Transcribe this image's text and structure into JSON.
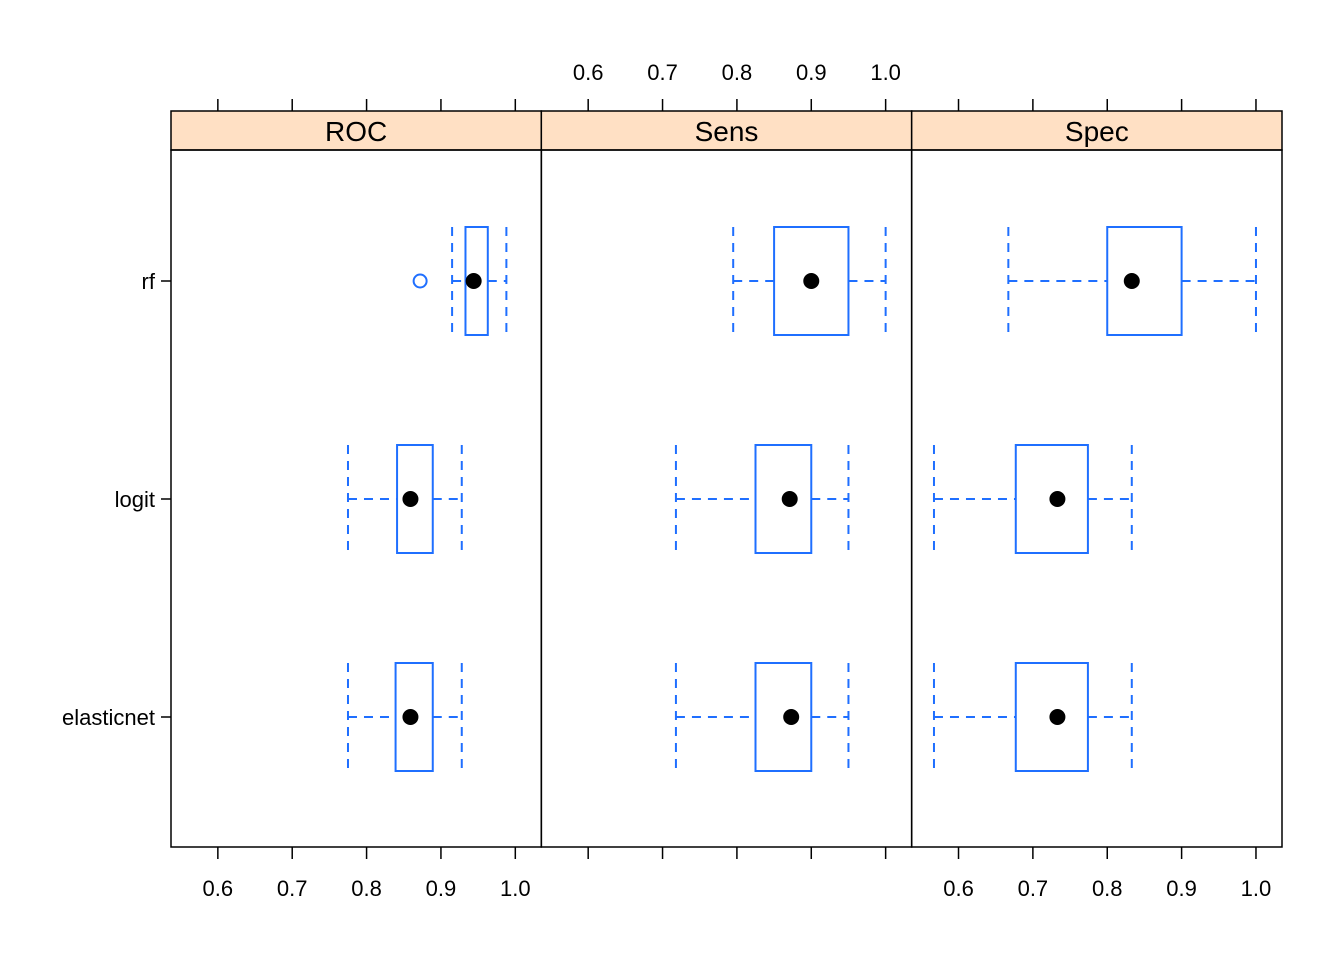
{
  "chart_data": {
    "type": "boxplot",
    "panels": [
      "ROC",
      "Sens",
      "Spec"
    ],
    "categories": [
      "rf",
      "logit",
      "elasticnet"
    ],
    "xlim": [
      0.537,
      1.035
    ],
    "ticks": [
      0.6,
      0.7,
      0.8,
      0.9,
      1.0
    ],
    "tick_labels": [
      "0.6",
      "0.7",
      "0.8",
      "0.9",
      "1.0"
    ],
    "grid": false,
    "colors": {
      "box": "#1f6fff",
      "median_dot": "#000000",
      "strip": "#ffe0c4",
      "outlier": "#1f6fff"
    },
    "series": [
      {
        "name": "ROC",
        "boxes": [
          {
            "category": "rf",
            "whisker_low": 0.915,
            "q1": 0.933,
            "median": 0.944,
            "q3": 0.963,
            "whisker_high": 0.988,
            "outliers": [
              0.872
            ]
          },
          {
            "category": "logit",
            "whisker_low": 0.775,
            "q1": 0.841,
            "median": 0.859,
            "q3": 0.889,
            "whisker_high": 0.928,
            "outliers": []
          },
          {
            "category": "elasticnet",
            "whisker_low": 0.775,
            "q1": 0.839,
            "median": 0.859,
            "q3": 0.889,
            "whisker_high": 0.928,
            "outliers": []
          }
        ]
      },
      {
        "name": "Sens",
        "boxes": [
          {
            "category": "rf",
            "whisker_low": 0.795,
            "q1": 0.85,
            "median": 0.9,
            "q3": 0.95,
            "whisker_high": 1.0,
            "outliers": []
          },
          {
            "category": "logit",
            "whisker_low": 0.718,
            "q1": 0.825,
            "median": 0.871,
            "q3": 0.9,
            "whisker_high": 0.95,
            "outliers": []
          },
          {
            "category": "elasticnet",
            "whisker_low": 0.718,
            "q1": 0.825,
            "median": 0.873,
            "q3": 0.9,
            "whisker_high": 0.95,
            "outliers": []
          }
        ]
      },
      {
        "name": "Spec",
        "boxes": [
          {
            "category": "rf",
            "whisker_low": 0.667,
            "q1": 0.8,
            "median": 0.833,
            "q3": 0.9,
            "whisker_high": 1.0,
            "outliers": []
          },
          {
            "category": "logit",
            "whisker_low": 0.567,
            "q1": 0.677,
            "median": 0.733,
            "q3": 0.774,
            "whisker_high": 0.833,
            "outliers": []
          },
          {
            "category": "elasticnet",
            "whisker_low": 0.567,
            "q1": 0.677,
            "median": 0.733,
            "q3": 0.774,
            "whisker_high": 0.833,
            "outliers": []
          }
        ]
      }
    ]
  }
}
